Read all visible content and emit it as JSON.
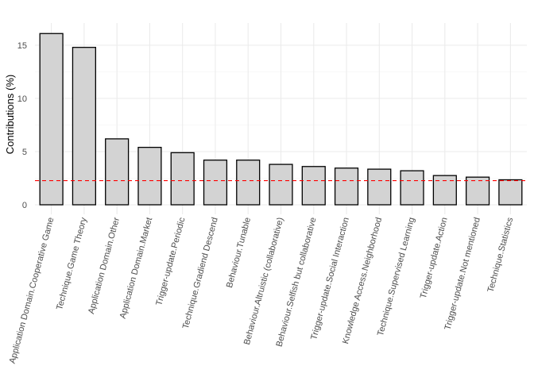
{
  "chart_data": {
    "type": "bar",
    "title": "",
    "xlabel": "",
    "ylabel": "Contributions (%)",
    "ylim": [
      0,
      17
    ],
    "yticks": [
      0,
      5,
      10,
      15
    ],
    "grid": true,
    "bar_fill": "#d3d3d3",
    "bar_stroke": "#000000",
    "reference_line": {
      "value": 2.27,
      "color": "#ff0000",
      "style": "dashed"
    },
    "categories": [
      "Application Domain.Cooperative Game",
      "Technique.Game Theory",
      "Application Domain.Other",
      "Application Domain.Market",
      "Trigger-update.Periodic",
      "Technique.Gradiend Descend",
      "Behaviour.Tunable",
      "Behaviour.Altruistic (collaborative)",
      "Behaviour.Selfish but collaborative",
      "Trigger-update.Social Interaction",
      "Knowledge Access.Neighborhood",
      "Technique.Supervised Learning",
      "Trigger-update.Action",
      "Trigger-update.Not mentioned",
      "Technique.Statistics"
    ],
    "values": [
      16.1,
      14.8,
      6.2,
      5.4,
      4.9,
      4.2,
      4.2,
      3.8,
      3.6,
      3.45,
      3.35,
      3.2,
      2.75,
      2.6,
      2.35
    ]
  }
}
